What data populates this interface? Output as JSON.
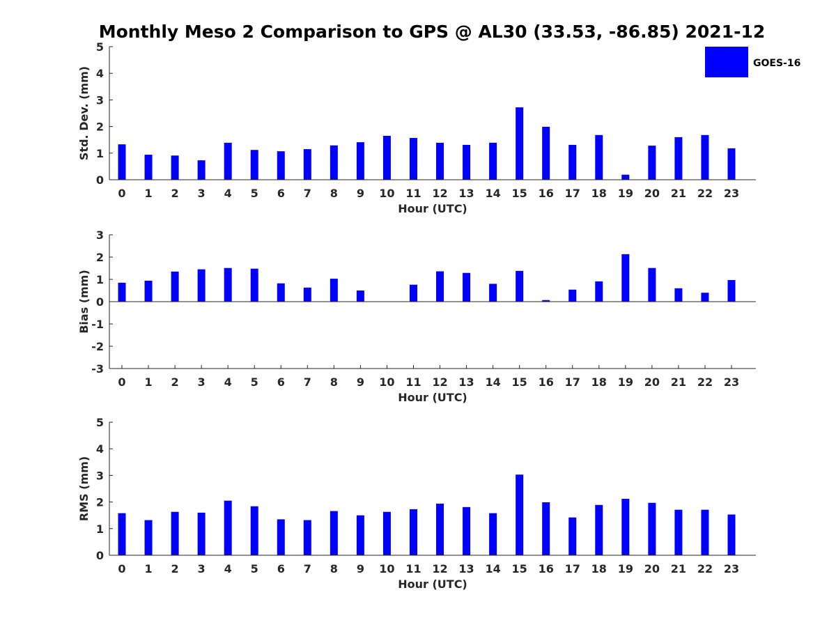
{
  "title": "Monthly Meso 2 Comparison to GPS @ AL30 (33.53, -86.85) 2021-12",
  "legend": {
    "label": "GOES-16",
    "color": "#0000ff",
    "placement": "top-right"
  },
  "chart_data": [
    {
      "type": "bar",
      "ylabel": "Std. Dev. (mm)",
      "xlabel": "Hour (UTC)",
      "ylim": [
        0,
        5
      ],
      "yticks": [
        0,
        1,
        2,
        3,
        4,
        5
      ],
      "categories": [
        "0",
        "1",
        "2",
        "3",
        "4",
        "5",
        "6",
        "7",
        "8",
        "9",
        "10",
        "11",
        "12",
        "13",
        "14",
        "15",
        "16",
        "17",
        "18",
        "19",
        "20",
        "21",
        "22",
        "23"
      ],
      "values": [
        1.33,
        0.94,
        0.91,
        0.73,
        1.39,
        1.12,
        1.07,
        1.15,
        1.29,
        1.41,
        1.65,
        1.57,
        1.39,
        1.31,
        1.39,
        2.72,
        1.99,
        1.31,
        1.68,
        0.19,
        1.28,
        1.6,
        1.68,
        1.18
      ],
      "series_name": "GOES-16",
      "grid": false
    },
    {
      "type": "bar",
      "ylabel": "Bias (mm)",
      "xlabel": "Hour (UTC)",
      "ylim": [
        -3,
        3
      ],
      "yticks": [
        -3,
        -2,
        -1,
        0,
        1,
        2,
        3
      ],
      "categories": [
        "0",
        "1",
        "2",
        "3",
        "4",
        "5",
        "6",
        "7",
        "8",
        "9",
        "10",
        "11",
        "12",
        "13",
        "14",
        "15",
        "16",
        "17",
        "18",
        "19",
        "20",
        "21",
        "22",
        "23"
      ],
      "values": [
        0.85,
        0.94,
        1.35,
        1.45,
        1.51,
        1.48,
        0.82,
        0.63,
        1.03,
        0.5,
        0.0,
        0.76,
        1.36,
        1.29,
        0.8,
        1.38,
        0.07,
        0.54,
        0.91,
        2.13,
        1.51,
        0.6,
        0.4,
        0.97
      ],
      "series_name": "GOES-16",
      "grid": false
    },
    {
      "type": "bar",
      "ylabel": "RMS (mm)",
      "xlabel": "Hour (UTC)",
      "ylim": [
        0,
        5
      ],
      "yticks": [
        0,
        1,
        2,
        3,
        4,
        5
      ],
      "categories": [
        "0",
        "1",
        "2",
        "3",
        "4",
        "5",
        "6",
        "7",
        "8",
        "9",
        "10",
        "11",
        "12",
        "13",
        "14",
        "15",
        "16",
        "17",
        "18",
        "19",
        "20",
        "21",
        "22",
        "23"
      ],
      "values": [
        1.58,
        1.32,
        1.63,
        1.6,
        2.05,
        1.84,
        1.35,
        1.32,
        1.66,
        1.5,
        1.63,
        1.73,
        1.94,
        1.81,
        1.58,
        3.03,
        1.99,
        1.42,
        1.89,
        2.12,
        1.97,
        1.71,
        1.71,
        1.53
      ],
      "series_name": "GOES-16",
      "grid": false
    }
  ]
}
